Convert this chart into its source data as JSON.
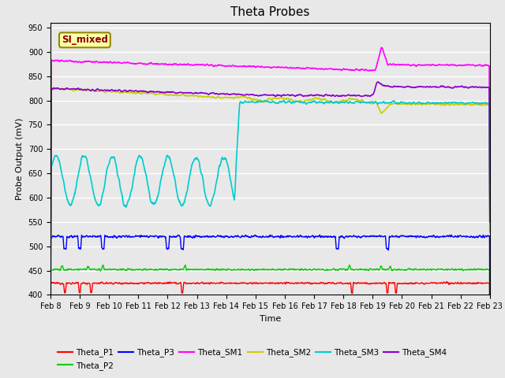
{
  "title": "Theta Probes",
  "ylabel": "Probe Output (mV)",
  "xlabel": "Time",
  "annotation": "SI_mixed",
  "annotation_color": "#8B0000",
  "annotation_bg": "#FFFFAA",
  "annotation_border": "#8B8B00",
  "ylim": [
    400,
    960
  ],
  "yticks": [
    400,
    450,
    500,
    550,
    600,
    650,
    700,
    750,
    800,
    850,
    900,
    950
  ],
  "plot_bg": "#E8E8E8",
  "xtick_labels": [
    "Feb 8",
    "Feb 9",
    "Feb 10",
    "Feb 11",
    "Feb 12",
    "Feb 13",
    "Feb 14",
    "Feb 15",
    "Feb 16",
    "Feb 17",
    "Feb 18",
    "Feb 19",
    "Feb 20",
    "Feb 21",
    "Feb 22",
    "Feb 23"
  ],
  "series": {
    "Theta_P1": {
      "color": "#FF0000",
      "lw": 1.0
    },
    "Theta_P2": {
      "color": "#00CC00",
      "lw": 1.0
    },
    "Theta_P3": {
      "color": "#0000FF",
      "lw": 1.0
    },
    "Theta_SM1": {
      "color": "#FF00FF",
      "lw": 1.2
    },
    "Theta_SM2": {
      "color": "#CCCC00",
      "lw": 1.2
    },
    "Theta_SM3": {
      "color": "#00CCCC",
      "lw": 1.2
    },
    "Theta_SM4": {
      "color": "#8800CC",
      "lw": 1.2
    }
  },
  "title_fontsize": 11,
  "tick_fontsize": 7,
  "label_fontsize": 8
}
